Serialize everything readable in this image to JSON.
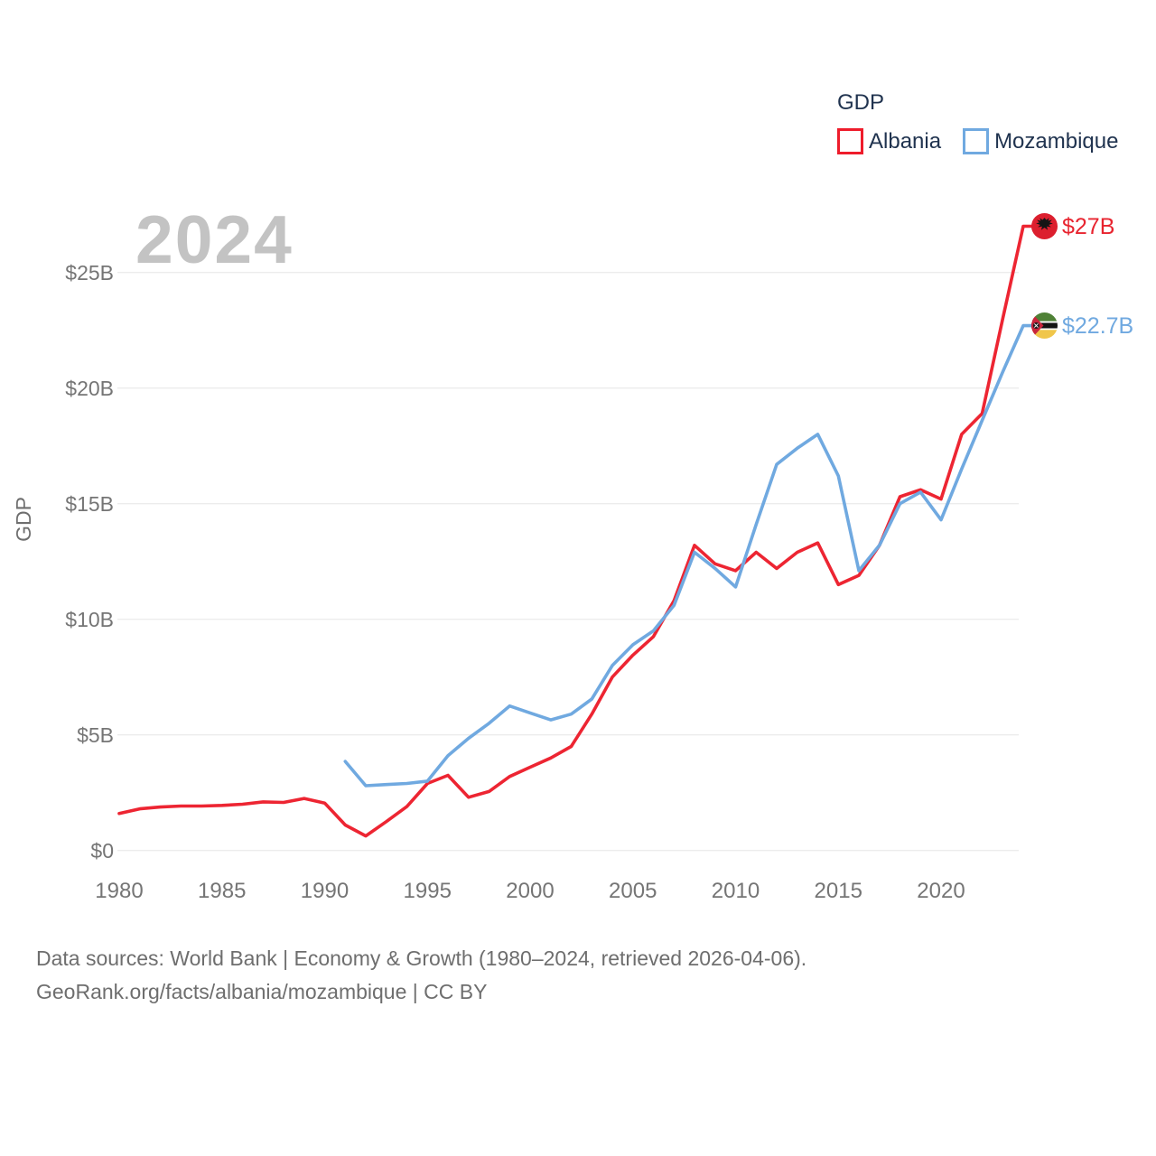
{
  "watermark": {
    "text": "2024"
  },
  "legend": {
    "title": "GDP",
    "items": [
      {
        "label": "Albania",
        "color": "#ee1c2b"
      },
      {
        "label": "Mozambique",
        "color": "#70a9e0"
      }
    ]
  },
  "end_labels": {
    "albania": {
      "text": "$27B",
      "color": "#e8242f",
      "flag": "albania-flag"
    },
    "mozambique": {
      "text": "$22.7B",
      "color": "#70a9e0",
      "flag": "mozambique-flag"
    }
  },
  "footer": {
    "line1": "Data sources: World Bank | Economy & Growth (1980–2024, retrieved 2026-04-06).",
    "line2": "GeoRank.org/facts/albania/mozambique | CC BY"
  },
  "chart_data": {
    "type": "line",
    "title": "GDP",
    "xlabel": "",
    "ylabel": "GDP",
    "xlim": [
      1980,
      2024
    ],
    "ylim": [
      0,
      27
    ],
    "grid": "horizontal",
    "legend_position": "top-right",
    "x_ticks": [
      1980,
      1985,
      1990,
      1995,
      2000,
      2005,
      2010,
      2015,
      2020
    ],
    "y_ticks": [
      {
        "value": 0,
        "label": "$0"
      },
      {
        "value": 5,
        "label": "$5B"
      },
      {
        "value": 10,
        "label": "$10B"
      },
      {
        "value": 15,
        "label": "$15B"
      },
      {
        "value": 20,
        "label": "$20B"
      },
      {
        "value": 25,
        "label": "$25B"
      }
    ],
    "units": "billions USD",
    "series": [
      {
        "name": "Albania",
        "color": "#ed2532",
        "start_year": 1980,
        "end_value_label": "$27B",
        "values": [
          1.6,
          1.8,
          1.88,
          1.92,
          1.92,
          1.95,
          2.0,
          2.1,
          2.08,
          2.25,
          2.05,
          1.1,
          0.63,
          1.25,
          1.9,
          2.9,
          3.25,
          2.3,
          2.55,
          3.2,
          3.6,
          4.0,
          4.5,
          5.9,
          7.5,
          8.45,
          9.25,
          10.8,
          13.2,
          12.4,
          12.1,
          12.9,
          12.2,
          12.9,
          13.3,
          11.5,
          11.9,
          13.2,
          15.3,
          15.6,
          15.2,
          18.0,
          18.9,
          23.0,
          27.0
        ]
      },
      {
        "name": "Mozambique",
        "color": "#70a9e0",
        "start_year": 1991,
        "end_value_label": "$22.7B",
        "values": [
          3.85,
          2.8,
          2.85,
          2.9,
          3.0,
          4.1,
          4.85,
          5.5,
          6.25,
          5.95,
          5.65,
          5.9,
          6.55,
          8.0,
          8.9,
          9.5,
          10.6,
          12.9,
          12.2,
          11.4,
          14.1,
          16.7,
          17.4,
          18.0,
          16.2,
          12.1,
          13.2,
          15.0,
          15.5,
          14.3,
          16.5,
          18.6,
          20.7,
          22.7
        ]
      }
    ]
  }
}
